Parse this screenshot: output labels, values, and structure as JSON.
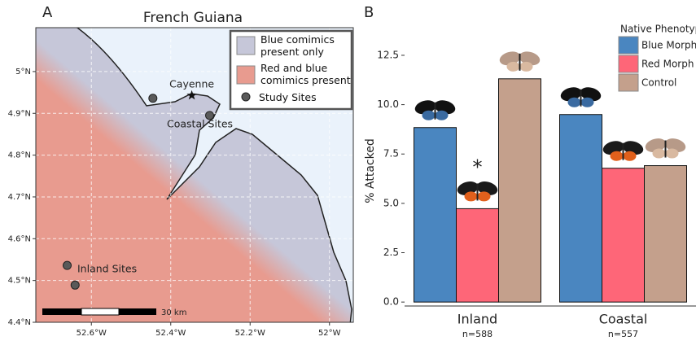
{
  "chart_data": [
    {
      "type": "map",
      "panel_label": "A",
      "title": "French Guiana",
      "xlim": [
        -52.74,
        -51.94
      ],
      "ylim": [
        4.4,
        5.105
      ],
      "xticks": [
        {
          "value": -52.6,
          "label": "52.6°W"
        },
        {
          "value": -52.4,
          "label": "52.4°W"
        },
        {
          "value": -52.2,
          "label": "52.2°W"
        },
        {
          "value": -52,
          "label": "52°W"
        }
      ],
      "yticks": [
        {
          "value": 4.4,
          "label": "4.4°N"
        },
        {
          "value": 4.5,
          "label": "4.5°N"
        },
        {
          "value": 4.6,
          "label": "4.6°N"
        },
        {
          "value": 4.7,
          "label": "4.7°N"
        },
        {
          "value": 4.8,
          "label": "4.8°N"
        },
        {
          "value": 4.9,
          "label": "4.9°N"
        },
        {
          "value": 5,
          "label": "5°N"
        }
      ],
      "grid": true,
      "legend": [
        {
          "name": "Blue comimics present only",
          "color": "#c6c7d9"
        },
        {
          "name": "Red and blue comimics present",
          "color": "#e89b8f"
        }
      ],
      "points": {
        "name": "Study Sites",
        "color": "#5a5a5a",
        "x": [
          -52.445,
          -52.302,
          -52.661,
          -52.641
        ],
        "y": [
          4.936,
          4.895,
          4.536,
          4.489
        ]
      },
      "city": {
        "name": "Cayenne",
        "x": -52.347,
        "y": 4.943
      },
      "annotations": [
        "Coastal Sites",
        "Inland Sites"
      ],
      "scale_label": "30 km"
    },
    {
      "type": "bar",
      "panel_label": "B",
      "ylabel": "% Attacked",
      "categories": [
        "Inland",
        "Coastal"
      ],
      "category_notes": [
        "n=588",
        "n=557"
      ],
      "ylim": [
        -0.2,
        13.9
      ],
      "yticks": [
        {
          "value": 0,
          "label": "0.0"
        },
        2.5,
        {
          "value": 5,
          "label": "5.0"
        },
        7.5,
        {
          "value": 10,
          "label": "10.0"
        },
        12.5
      ],
      "legend_title": "Native Phenotype",
      "series": [
        {
          "name": "Blue Morph",
          "color": "#4a86c0",
          "values": [
            8.84,
            9.5
          ]
        },
        {
          "name": "Red Morph",
          "color": "#fe6678",
          "values": [
            4.73,
            6.78
          ]
        },
        {
          "name": "Control",
          "color": "#c4a08c",
          "values": [
            11.31,
            6.91
          ]
        }
      ],
      "significance_marker": "*"
    }
  ]
}
